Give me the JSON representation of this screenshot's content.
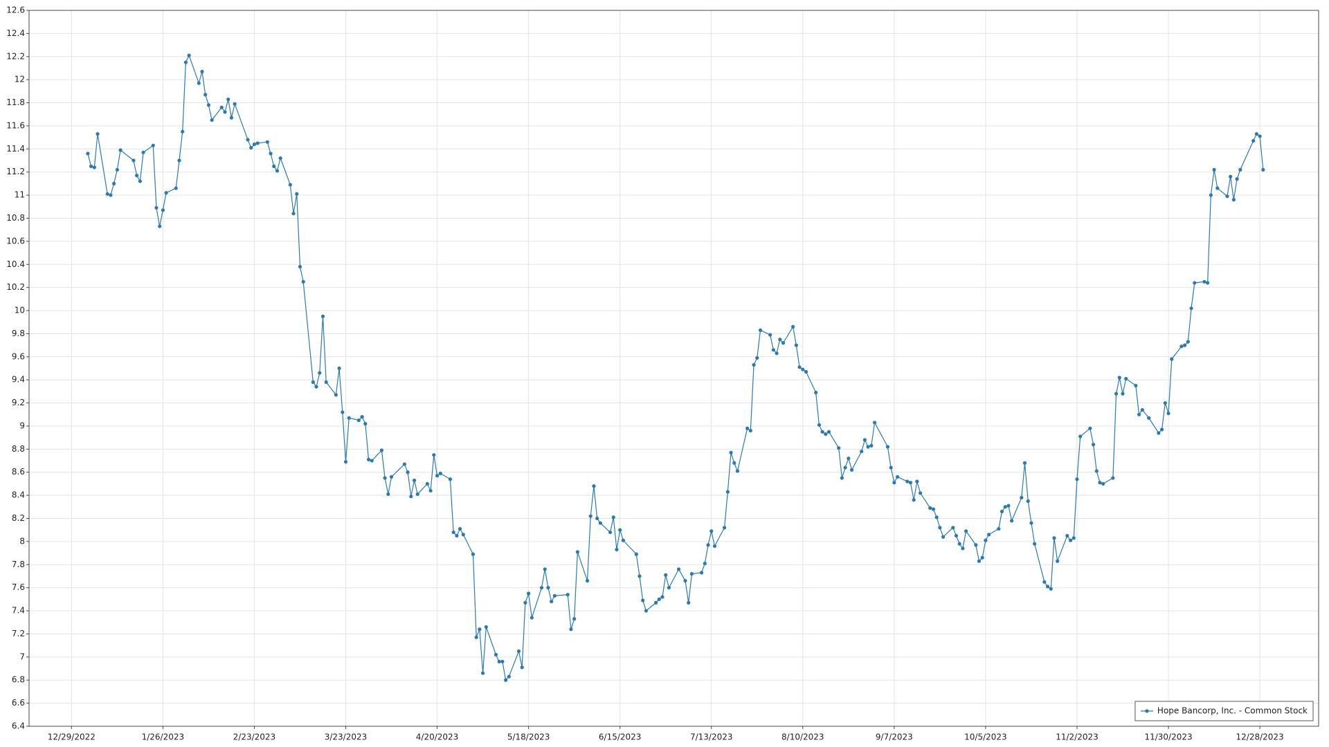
{
  "chart_data": {
    "type": "line",
    "legend": "lower right",
    "grid": true,
    "xlim": [
      "12/16/2022",
      "1/15/2024"
    ],
    "xticks": [
      "12/29/2022",
      "1/26/2023",
      "2/23/2023",
      "3/23/2023",
      "4/20/2023",
      "5/18/2023",
      "6/15/2023",
      "7/13/2023",
      "8/10/2023",
      "9/7/2023",
      "10/5/2023",
      "11/2/2023",
      "11/30/2023",
      "12/28/2023"
    ],
    "ylim": [
      6.4,
      12.6
    ],
    "yticks": [
      6.4,
      6.6,
      6.8,
      7,
      7.2,
      7.4,
      7.6,
      7.8,
      8,
      8.2,
      8.4,
      8.6,
      8.8,
      9,
      9.2,
      9.4,
      9.6,
      9.8,
      10,
      10.2,
      10.4,
      10.6,
      10.8,
      11,
      11.2,
      11.4,
      11.6,
      11.8,
      12,
      12.2,
      12.4,
      12.6
    ],
    "x": [
      "1/3/2023",
      "1/4/2023",
      "1/5/2023",
      "1/6/2023",
      "1/9/2023",
      "1/10/2023",
      "1/11/2023",
      "1/12/2023",
      "1/13/2023",
      "1/17/2023",
      "1/18/2023",
      "1/19/2023",
      "1/20/2023",
      "1/23/2023",
      "1/24/2023",
      "1/25/2023",
      "1/26/2023",
      "1/27/2023",
      "1/30/2023",
      "1/31/2023",
      "2/1/2023",
      "2/2/2023",
      "2/3/2023",
      "2/6/2023",
      "2/7/2023",
      "2/8/2023",
      "2/9/2023",
      "2/10/2023",
      "2/13/2023",
      "2/14/2023",
      "2/15/2023",
      "2/16/2023",
      "2/17/2023",
      "2/21/2023",
      "2/22/2023",
      "2/23/2023",
      "2/24/2023",
      "2/27/2023",
      "2/28/2023",
      "3/1/2023",
      "3/2/2023",
      "3/3/2023",
      "3/6/2023",
      "3/7/2023",
      "3/8/2023",
      "3/9/2023",
      "3/10/2023",
      "3/13/2023",
      "3/14/2023",
      "3/15/2023",
      "3/16/2023",
      "3/17/2023",
      "3/20/2023",
      "3/21/2023",
      "3/22/2023",
      "3/23/2023",
      "3/24/2023",
      "3/27/2023",
      "3/28/2023",
      "3/29/2023",
      "3/30/2023",
      "3/31/2023",
      "4/3/2023",
      "4/4/2023",
      "4/5/2023",
      "4/6/2023",
      "4/10/2023",
      "4/11/2023",
      "4/12/2023",
      "4/13/2023",
      "4/14/2023",
      "4/17/2023",
      "4/18/2023",
      "4/19/2023",
      "4/20/2023",
      "4/21/2023",
      "4/24/2023",
      "4/25/2023",
      "4/26/2023",
      "4/27/2023",
      "4/28/2023",
      "5/1/2023",
      "5/2/2023",
      "5/3/2023",
      "5/4/2023",
      "5/5/2023",
      "5/8/2023",
      "5/9/2023",
      "5/10/2023",
      "5/11/2023",
      "5/12/2023",
      "5/15/2023",
      "5/16/2023",
      "5/17/2023",
      "5/18/2023",
      "5/19/2023",
      "5/22/2023",
      "5/23/2023",
      "5/24/2023",
      "5/25/2023",
      "5/26/2023",
      "5/30/2023",
      "5/31/2023",
      "6/1/2023",
      "6/2/2023",
      "6/5/2023",
      "6/6/2023",
      "6/7/2023",
      "6/8/2023",
      "6/9/2023",
      "6/12/2023",
      "6/13/2023",
      "6/14/2023",
      "6/15/2023",
      "6/16/2023",
      "6/20/2023",
      "6/21/2023",
      "6/22/2023",
      "6/23/2023",
      "6/26/2023",
      "6/27/2023",
      "6/28/2023",
      "6/29/2023",
      "6/30/2023",
      "7/3/2023",
      "7/5/2023",
      "7/6/2023",
      "7/7/2023",
      "7/10/2023",
      "7/11/2023",
      "7/12/2023",
      "7/13/2023",
      "7/14/2023",
      "7/17/2023",
      "7/18/2023",
      "7/19/2023",
      "7/20/2023",
      "7/21/2023",
      "7/24/2023",
      "7/25/2023",
      "7/26/2023",
      "7/27/2023",
      "7/28/2023",
      "7/31/2023",
      "8/1/2023",
      "8/2/2023",
      "8/3/2023",
      "8/4/2023",
      "8/7/2023",
      "8/8/2023",
      "8/9/2023",
      "8/10/2023",
      "8/11/2023",
      "8/14/2023",
      "8/15/2023",
      "8/16/2023",
      "8/17/2023",
      "8/18/2023",
      "8/21/2023",
      "8/22/2023",
      "8/23/2023",
      "8/24/2023",
      "8/25/2023",
      "8/28/2023",
      "8/29/2023",
      "8/30/2023",
      "8/31/2023",
      "9/1/2023",
      "9/5/2023",
      "9/6/2023",
      "9/7/2023",
      "9/8/2023",
      "9/11/2023",
      "9/12/2023",
      "9/13/2023",
      "9/14/2023",
      "9/15/2023",
      "9/18/2023",
      "9/19/2023",
      "9/20/2023",
      "9/21/2023",
      "9/22/2023",
      "9/25/2023",
      "9/26/2023",
      "9/27/2023",
      "9/28/2023",
      "9/29/2023",
      "10/2/2023",
      "10/3/2023",
      "10/4/2023",
      "10/5/2023",
      "10/6/2023",
      "10/9/2023",
      "10/10/2023",
      "10/11/2023",
      "10/12/2023",
      "10/13/2023",
      "10/16/2023",
      "10/17/2023",
      "10/18/2023",
      "10/19/2023",
      "10/20/2023",
      "10/23/2023",
      "10/24/2023",
      "10/25/2023",
      "10/26/2023",
      "10/27/2023",
      "10/30/2023",
      "10/31/2023",
      "11/1/2023",
      "11/2/2023",
      "11/3/2023",
      "11/6/2023",
      "11/7/2023",
      "11/8/2023",
      "11/9/2023",
      "11/10/2023",
      "11/13/2023",
      "11/14/2023",
      "11/15/2023",
      "11/16/2023",
      "11/17/2023",
      "11/20/2023",
      "11/21/2023",
      "11/22/2023",
      "11/24/2023",
      "11/27/2023",
      "11/28/2023",
      "11/29/2023",
      "11/30/2023",
      "12/1/2023",
      "12/4/2023",
      "12/5/2023",
      "12/6/2023",
      "12/7/2023",
      "12/8/2023",
      "12/11/2023",
      "12/12/2023",
      "12/13/2023",
      "12/14/2023",
      "12/15/2023",
      "12/18/2023",
      "12/19/2023",
      "12/20/2023",
      "12/21/2023",
      "12/22/2023",
      "12/26/2023",
      "12/27/2023",
      "12/28/2023",
      "12/29/2023"
    ],
    "series": [
      {
        "name": "Hope Bancorp, Inc. - Common Stock",
        "color": "#2a7ab0",
        "values": [
          11.36,
          11.25,
          11.24,
          11.53,
          11.01,
          11.0,
          11.1,
          11.22,
          11.39,
          11.3,
          11.17,
          11.12,
          11.37,
          11.43,
          10.89,
          10.73,
          10.87,
          11.02,
          11.06,
          11.3,
          11.55,
          12.15,
          12.21,
          11.97,
          12.07,
          11.87,
          11.78,
          11.65,
          11.76,
          11.72,
          11.83,
          11.67,
          11.79,
          11.48,
          11.41,
          11.44,
          11.45,
          11.46,
          11.36,
          11.25,
          11.21,
          11.32,
          11.09,
          10.84,
          11.01,
          10.38,
          10.25,
          9.38,
          9.34,
          9.46,
          9.95,
          9.38,
          9.27,
          9.5,
          9.12,
          8.69,
          9.07,
          9.05,
          9.08,
          9.02,
          8.71,
          8.7,
          8.79,
          8.55,
          8.41,
          8.56,
          8.67,
          8.6,
          8.39,
          8.53,
          8.41,
          8.5,
          8.44,
          8.75,
          8.57,
          8.59,
          8.54,
          8.08,
          8.05,
          8.11,
          8.06,
          7.89,
          7.17,
          7.24,
          6.86,
          7.26,
          7.02,
          6.96,
          6.96,
          6.8,
          6.83,
          7.05,
          6.91,
          7.47,
          7.55,
          7.34,
          7.6,
          7.76,
          7.6,
          7.48,
          7.53,
          7.54,
          7.24,
          7.33,
          7.91,
          7.66,
          8.22,
          8.48,
          8.2,
          8.16,
          8.08,
          8.21,
          7.93,
          8.1,
          8.01,
          7.89,
          7.7,
          7.49,
          7.4,
          7.47,
          7.5,
          7.52,
          7.71,
          7.6,
          7.76,
          7.66,
          7.47,
          7.72,
          7.73,
          7.81,
          7.97,
          8.09,
          7.96,
          8.12,
          8.43,
          8.77,
          8.68,
          8.61,
          8.98,
          8.96,
          9.53,
          9.59,
          9.83,
          9.79,
          9.66,
          9.63,
          9.75,
          9.72,
          9.86,
          9.7,
          9.51,
          9.49,
          9.47,
          9.29,
          9.01,
          8.95,
          8.93,
          8.95,
          8.81,
          8.55,
          8.64,
          8.72,
          8.62,
          8.78,
          8.88,
          8.82,
          8.83,
          9.03,
          8.82,
          8.64,
          8.51,
          8.56,
          8.52,
          8.51,
          8.36,
          8.52,
          8.42,
          8.29,
          8.28,
          8.21,
          8.12,
          8.04,
          8.12,
          8.05,
          7.98,
          7.94,
          8.09,
          7.97,
          7.83,
          7.86,
          8.01,
          8.06,
          8.11,
          8.26,
          8.3,
          8.31,
          8.18,
          8.38,
          8.68,
          8.35,
          8.16,
          7.98,
          7.65,
          7.61,
          7.59,
          8.03,
          7.83,
          8.05,
          8.01,
          8.03,
          8.54,
          8.91,
          8.98,
          8.84,
          8.61,
          8.51,
          8.5,
          8.55,
          9.28,
          9.42,
          9.28,
          9.41,
          9.35,
          9.1,
          9.14,
          9.07,
          8.94,
          8.97,
          9.2,
          9.11,
          9.58,
          9.69,
          9.7,
          9.73,
          10.02,
          10.24,
          10.25,
          10.24,
          11.0,
          11.22,
          11.06,
          10.99,
          11.16,
          10.96,
          11.14,
          11.22,
          11.47,
          11.53,
          11.51,
          11.22
        ]
      }
    ]
  }
}
